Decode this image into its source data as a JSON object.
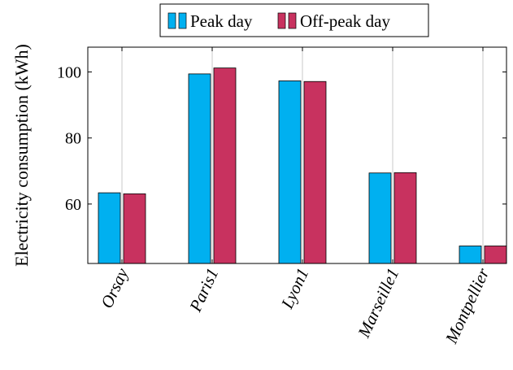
{
  "chart_data": {
    "type": "bar",
    "categories": [
      "Orsay",
      "Paris1",
      "Lyon1",
      "Marseille1",
      "Montpellier"
    ],
    "series": [
      {
        "name": "Peak day",
        "values": [
          63.4,
          99.4,
          97.3,
          69.4,
          47.3
        ],
        "color": "#00b0f0"
      },
      {
        "name": "Off-peak day",
        "values": [
          63.1,
          101.2,
          97.1,
          69.5,
          47.3
        ],
        "color": "#c8325f"
      }
    ],
    "ylabel": "Electricity consumption (kWh)",
    "xlabel": "",
    "ylim": [
      42,
      107.5
    ],
    "yticks": [
      60,
      80,
      100
    ],
    "grid": "vertical",
    "legend_position": "top-center"
  }
}
